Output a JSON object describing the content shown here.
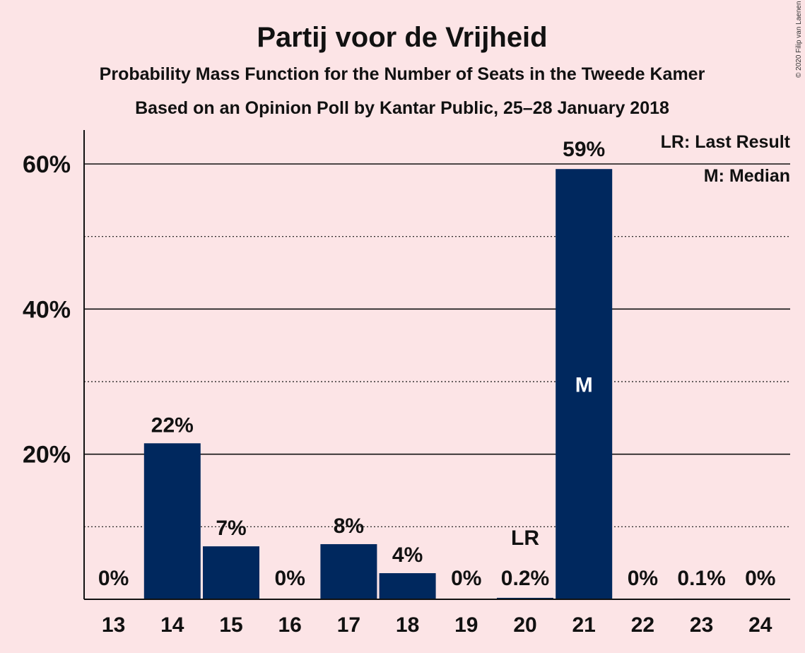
{
  "chart_data": {
    "type": "bar",
    "title": "Partij voor de Vrijheid",
    "subtitle": "Probability Mass Function for the Number of Seats in the Tweede Kamer",
    "subtitle2": "Based on an Opinion Poll by Kantar Public, 25–28 January 2018",
    "categories": [
      "13",
      "14",
      "15",
      "16",
      "17",
      "18",
      "19",
      "20",
      "21",
      "22",
      "23",
      "24"
    ],
    "values": [
      0,
      21.5,
      7.3,
      0,
      7.6,
      3.6,
      0,
      0.2,
      59.3,
      0,
      0.1,
      0
    ],
    "data_labels": [
      "0%",
      "22%",
      "7%",
      "0%",
      "8%",
      "4%",
      "0%",
      "0.2%",
      "59%",
      "0%",
      "0.1%",
      "0%"
    ],
    "ylim": [
      0,
      65
    ],
    "yticks": [
      20,
      40,
      60
    ],
    "ytick_labels": [
      "20%",
      "40%",
      "60%"
    ],
    "minor_gridlines": [
      10,
      30,
      50
    ],
    "last_result": "20",
    "last_result_marker": "LR",
    "median": "21",
    "median_marker": "M",
    "legend": [
      "LR: Last Result",
      "M: Median"
    ],
    "legend_position": "top-right",
    "bar_color": "#00285e",
    "background_color": "#fce4e6",
    "copyright": "© 2020 Filip van Laenen"
  }
}
